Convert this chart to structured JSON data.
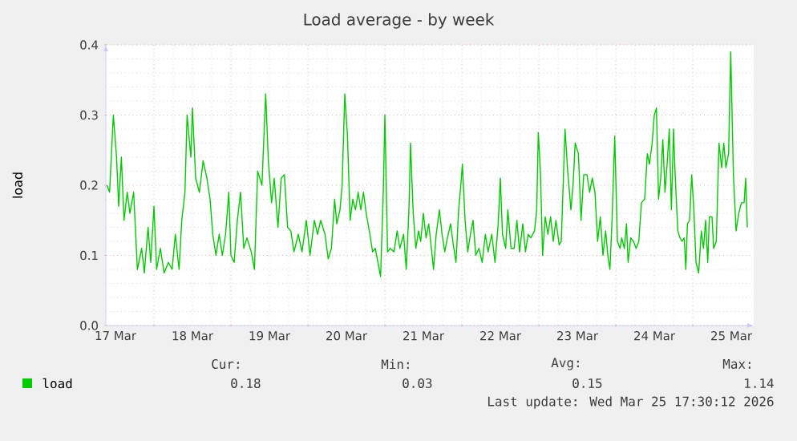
{
  "chart_data": {
    "type": "line",
    "title": "Load average - by week",
    "ylabel": "load",
    "xlim": [
      "2026-03-17T09:00",
      "2026-03-25T19:00"
    ],
    "xticks": [
      {
        "value": "2026-03-17T12:00",
        "label": "17 Mar"
      },
      {
        "value": "2026-03-18T12:00",
        "label": "18 Mar"
      },
      {
        "value": "2026-03-19T12:00",
        "label": "19 Mar"
      },
      {
        "value": "2026-03-20T12:00",
        "label": "20 Mar"
      },
      {
        "value": "2026-03-21T12:00",
        "label": "21 Mar"
      },
      {
        "value": "2026-03-22T12:00",
        "label": "22 Mar"
      },
      {
        "value": "2026-03-23T12:00",
        "label": "23 Mar"
      },
      {
        "value": "2026-03-24T12:00",
        "label": "24 Mar"
      },
      {
        "value": "2026-03-25T12:00",
        "label": "25 Mar"
      },
      {
        "value": "2026-03-18",
        "label": null
      },
      {
        "value": "2026-03-19",
        "label": null
      },
      {
        "value": "2026-03-20",
        "label": null
      },
      {
        "value": "2026-03-21",
        "label": null
      },
      {
        "value": "2026-03-22",
        "label": null
      },
      {
        "value": "2026-03-23",
        "label": null
      },
      {
        "value": "2026-03-24",
        "label": null
      },
      {
        "value": "2026-03-25",
        "label": null
      }
    ],
    "ylim": [
      0,
      0.4
    ],
    "yticks": [
      {
        "value": 0,
        "label": "0.0"
      },
      0.1,
      0.2,
      0.3,
      0.4
    ],
    "grid": true,
    "legend": "bottom",
    "annotations": [
      "Cur:",
      "Min:",
      "Avg:",
      "Max:",
      "0.18",
      "0.03",
      "0.15",
      "1.14",
      "Last update: Wed Mar 25 17:30:12 2026"
    ],
    "series": [
      {
        "name": "load",
        "color": "#00cc00",
        "x": [
          "2026-03-17T09:20",
          "2026-03-17T10:10",
          "2026-03-17T11:20",
          "2026-03-17T12:20",
          "2026-03-17T13:00",
          "2026-03-17T13:50",
          "2026-03-17T14:40",
          "2026-03-17T15:40",
          "2026-03-17T16:30",
          "2026-03-17T17:40",
          "2026-03-17T18:50",
          "2026-03-17T20:10",
          "2026-03-17T21:00",
          "2026-03-17T22:10",
          "2026-03-17T23:00",
          "2026-03-18T00:00",
          "2026-03-18T00:50",
          "2026-03-18T02:00",
          "2026-03-18T03:10",
          "2026-03-18T04:30",
          "2026-03-18T05:40",
          "2026-03-18T06:40",
          "2026-03-18T07:50",
          "2026-03-18T08:40",
          "2026-03-18T09:40",
          "2026-03-18T10:20",
          "2026-03-18T11:30",
          "2026-03-18T12:00",
          "2026-03-18T13:00",
          "2026-03-18T14:10",
          "2026-03-18T15:20",
          "2026-03-18T16:30",
          "2026-03-18T17:30",
          "2026-03-18T18:20",
          "2026-03-18T19:20",
          "2026-03-18T20:20",
          "2026-03-18T21:20",
          "2026-03-18T22:20",
          "2026-03-18T23:20",
          "2026-03-19T00:00",
          "2026-03-19T01:00",
          "2026-03-19T02:00",
          "2026-03-19T03:00",
          "2026-03-19T04:00",
          "2026-03-19T05:00",
          "2026-03-19T06:20",
          "2026-03-19T07:20",
          "2026-03-19T08:20",
          "2026-03-19T09:40",
          "2026-03-19T10:50",
          "2026-03-19T11:40",
          "2026-03-19T12:40",
          "2026-03-19T13:30",
          "2026-03-19T14:40",
          "2026-03-19T15:40",
          "2026-03-19T16:40",
          "2026-03-19T17:40",
          "2026-03-19T18:40",
          "2026-03-19T19:40",
          "2026-03-19T21:00",
          "2026-03-19T22:10",
          "2026-03-19T23:30",
          "2026-03-20T00:40",
          "2026-03-20T02:00",
          "2026-03-20T03:00",
          "2026-03-20T04:00",
          "2026-03-20T05:20",
          "2026-03-20T06:20",
          "2026-03-20T07:20",
          "2026-03-20T08:20",
          "2026-03-20T09:00",
          "2026-03-20T10:00",
          "2026-03-20T10:40",
          "2026-03-20T11:30",
          "2026-03-20T12:20",
          "2026-03-20T13:10",
          "2026-03-20T14:00",
          "2026-03-20T14:50",
          "2026-03-20T15:40",
          "2026-03-20T16:30",
          "2026-03-20T17:20",
          "2026-03-20T18:10",
          "2026-03-20T19:20",
          "2026-03-20T20:10",
          "2026-03-20T21:00",
          "2026-03-20T21:50",
          "2026-03-20T22:40",
          "2026-03-20T23:30",
          "2026-03-21T00:00",
          "2026-03-21T00:50",
          "2026-03-21T01:40",
          "2026-03-21T02:50",
          "2026-03-21T03:50",
          "2026-03-21T04:40",
          "2026-03-21T05:50",
          "2026-03-21T06:40",
          "2026-03-21T07:30",
          "2026-03-21T08:00",
          "2026-03-21T08:50",
          "2026-03-21T09:40",
          "2026-03-21T10:30",
          "2026-03-21T11:10",
          "2026-03-21T12:00",
          "2026-03-21T12:50",
          "2026-03-21T13:40",
          "2026-03-21T14:30",
          "2026-03-21T15:10",
          "2026-03-21T16:00",
          "2026-03-21T17:00",
          "2026-03-21T17:50",
          "2026-03-21T18:40",
          "2026-03-21T19:30",
          "2026-03-21T20:30",
          "2026-03-21T21:20",
          "2026-03-21T22:10",
          "2026-03-21T23:00",
          "2026-03-21T23:40",
          "2026-03-22T00:10",
          "2026-03-22T01:00",
          "2026-03-22T01:50",
          "2026-03-22T02:40",
          "2026-03-22T03:30",
          "2026-03-22T04:20",
          "2026-03-22T05:20",
          "2026-03-22T06:20",
          "2026-03-22T07:20",
          "2026-03-22T08:10",
          "2026-03-22T09:20",
          "2026-03-22T10:20",
          "2026-03-22T11:20",
          "2026-03-22T12:00",
          "2026-03-22T12:40",
          "2026-03-22T13:40",
          "2026-03-22T14:20",
          "2026-03-22T15:20",
          "2026-03-22T16:20",
          "2026-03-22T17:10",
          "2026-03-22T18:00",
          "2026-03-22T19:00",
          "2026-03-22T19:50",
          "2026-03-22T20:40",
          "2026-03-22T21:30",
          "2026-03-22T22:40",
          "2026-03-22T23:20",
          "2026-03-22T23:50",
          "2026-03-23T00:30",
          "2026-03-23T01:10",
          "2026-03-23T02:00",
          "2026-03-23T02:50",
          "2026-03-23T03:40",
          "2026-03-23T04:30",
          "2026-03-23T05:20",
          "2026-03-23T06:20",
          "2026-03-23T07:00",
          "2026-03-23T08:10",
          "2026-03-23T09:00",
          "2026-03-23T10:00",
          "2026-03-23T10:40",
          "2026-03-23T11:20",
          "2026-03-23T12:20",
          "2026-03-23T13:10",
          "2026-03-23T14:00",
          "2026-03-23T15:00",
          "2026-03-23T15:50",
          "2026-03-23T16:40",
          "2026-03-23T17:30",
          "2026-03-23T18:20",
          "2026-03-23T19:10",
          "2026-03-23T20:00",
          "2026-03-23T20:50",
          "2026-03-23T21:30",
          "2026-03-23T22:10",
          "2026-03-23T22:50",
          "2026-03-23T23:40",
          "2026-03-24T00:30",
          "2026-03-24T01:20",
          "2026-03-24T01:50",
          "2026-03-24T02:40",
          "2026-03-24T03:20",
          "2026-03-24T03:50",
          "2026-03-24T04:40",
          "2026-03-24T05:30",
          "2026-03-24T06:20",
          "2026-03-24T07:10",
          "2026-03-24T08:00",
          "2026-03-24T09:00",
          "2026-03-24T09:50",
          "2026-03-24T10:30",
          "2026-03-24T11:20",
          "2026-03-24T12:00",
          "2026-03-24T12:40",
          "2026-03-24T13:20",
          "2026-03-24T14:00",
          "2026-03-24T14:40",
          "2026-03-24T15:20",
          "2026-03-24T16:00",
          "2026-03-24T16:40",
          "2026-03-24T17:20",
          "2026-03-24T18:00",
          "2026-03-24T18:30",
          "2026-03-24T19:20",
          "2026-03-24T20:00",
          "2026-03-24T20:40",
          "2026-03-24T21:20",
          "2026-03-24T21:50",
          "2026-03-24T22:20",
          "2026-03-24T23:00",
          "2026-03-24T23:40",
          "2026-03-25T00:20",
          "2026-03-25T01:00",
          "2026-03-25T01:50",
          "2026-03-25T02:40",
          "2026-03-25T03:20",
          "2026-03-25T04:00",
          "2026-03-25T04:40",
          "2026-03-25T05:10",
          "2026-03-25T06:00",
          "2026-03-25T06:30",
          "2026-03-25T07:20",
          "2026-03-25T08:10",
          "2026-03-25T09:00",
          "2026-03-25T09:40",
          "2026-03-25T10:20",
          "2026-03-25T11:10",
          "2026-03-25T11:50",
          "2026-03-25T12:40",
          "2026-03-25T13:30",
          "2026-03-25T14:20",
          "2026-03-25T15:10",
          "2026-03-25T16:00",
          "2026-03-25T16:30",
          "2026-03-25T17:00"
        ],
        "values": [
          0.2,
          0.19,
          0.3,
          0.24,
          0.17,
          0.24,
          0.15,
          0.19,
          0.16,
          0.19,
          0.08,
          0.11,
          0.075,
          0.14,
          0.09,
          0.17,
          0.08,
          0.11,
          0.075,
          0.09,
          0.08,
          0.13,
          0.08,
          0.15,
          0.19,
          0.3,
          0.24,
          0.31,
          0.21,
          0.19,
          0.235,
          0.21,
          0.18,
          0.13,
          0.1,
          0.13,
          0.1,
          0.13,
          0.19,
          0.1,
          0.09,
          0.15,
          0.19,
          0.11,
          0.125,
          0.105,
          0.08,
          0.22,
          0.2,
          0.33,
          0.235,
          0.175,
          0.21,
          0.14,
          0.21,
          0.215,
          0.14,
          0.135,
          0.105,
          0.13,
          0.105,
          0.15,
          0.1,
          0.15,
          0.13,
          0.15,
          0.13,
          0.095,
          0.11,
          0.18,
          0.145,
          0.165,
          0.2,
          0.33,
          0.27,
          0.15,
          0.18,
          0.165,
          0.19,
          0.165,
          0.19,
          0.16,
          0.13,
          0.105,
          0.11,
          0.09,
          0.07,
          0.19,
          0.3,
          0.105,
          0.11,
          0.105,
          0.135,
          0.11,
          0.13,
          0.08,
          0.165,
          0.26,
          0.16,
          0.11,
          0.135,
          0.12,
          0.16,
          0.125,
          0.145,
          0.11,
          0.08,
          0.13,
          0.165,
          0.13,
          0.105,
          0.125,
          0.145,
          0.115,
          0.09,
          0.165,
          0.2,
          0.23,
          0.15,
          0.105,
          0.13,
          0.15,
          0.1,
          0.11,
          0.09,
          0.13,
          0.105,
          0.13,
          0.09,
          0.145,
          0.21,
          0.13,
          0.11,
          0.165,
          0.11,
          0.11,
          0.15,
          0.105,
          0.145,
          0.105,
          0.13,
          0.125,
          0.135,
          0.165,
          0.275,
          0.22,
          0.1,
          0.155,
          0.13,
          0.155,
          0.12,
          0.15,
          0.115,
          0.12,
          0.28,
          0.22,
          0.165,
          0.2,
          0.26,
          0.245,
          0.15,
          0.215,
          0.215,
          0.19,
          0.21,
          0.19,
          0.12,
          0.155,
          0.1,
          0.135,
          0.1,
          0.08,
          0.15,
          0.27,
          0.12,
          0.11,
          0.125,
          0.11,
          0.145,
          0.09,
          0.125,
          0.12,
          0.11,
          0.12,
          0.175,
          0.18,
          0.245,
          0.23,
          0.26,
          0.3,
          0.31,
          0.18,
          0.21,
          0.265,
          0.19,
          0.23,
          0.28,
          0.165,
          0.28,
          0.215,
          0.135,
          0.125,
          0.12,
          0.125,
          0.08,
          0.145,
          0.15,
          0.215,
          0.165,
          0.09,
          0.075,
          0.135,
          0.11,
          0.15,
          0.09,
          0.155,
          0.155,
          0.11,
          0.12,
          0.26,
          0.225,
          0.26,
          0.225,
          0.245,
          0.39,
          0.215,
          0.135,
          0.16,
          0.175,
          0.175,
          0.21,
          0.14
        ]
      }
    ]
  }
}
